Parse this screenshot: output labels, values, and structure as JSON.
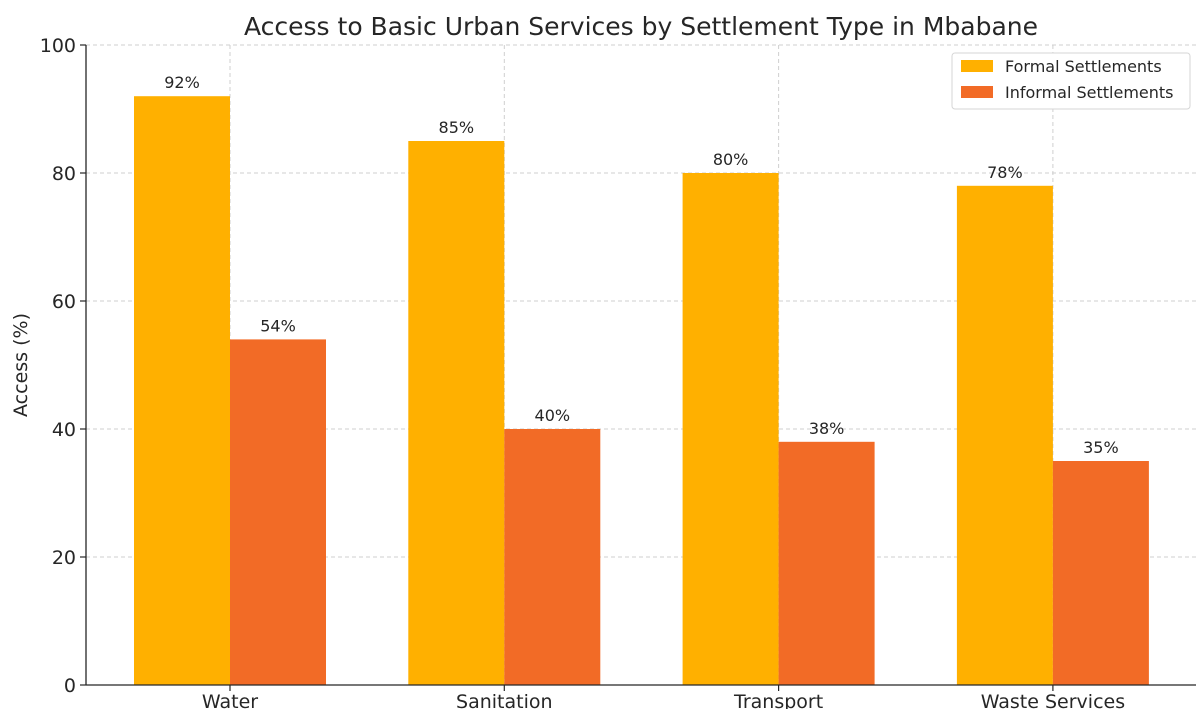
{
  "chart_data": {
    "type": "bar",
    "title": "Access to Basic Urban Services by Settlement Type in Mbabane",
    "xlabel": "",
    "ylabel": "Access (%)",
    "ylim": [
      0,
      100
    ],
    "yticks": [
      0,
      20,
      40,
      60,
      80,
      100
    ],
    "categories": [
      "Water",
      "Sanitation",
      "Transport",
      "Waste Services"
    ],
    "series": [
      {
        "name": "Formal Settlements",
        "color": "#FFB000",
        "values": [
          92,
          85,
          80,
          78
        ],
        "labels": [
          "92%",
          "85%",
          "80%",
          "78%"
        ]
      },
      {
        "name": "Informal Settlements",
        "color": "#F26B26",
        "values": [
          54,
          40,
          38,
          35
        ],
        "labels": [
          "54%",
          "40%",
          "38%",
          "35%"
        ]
      }
    ],
    "grid": true,
    "legend_position": "top-right"
  }
}
